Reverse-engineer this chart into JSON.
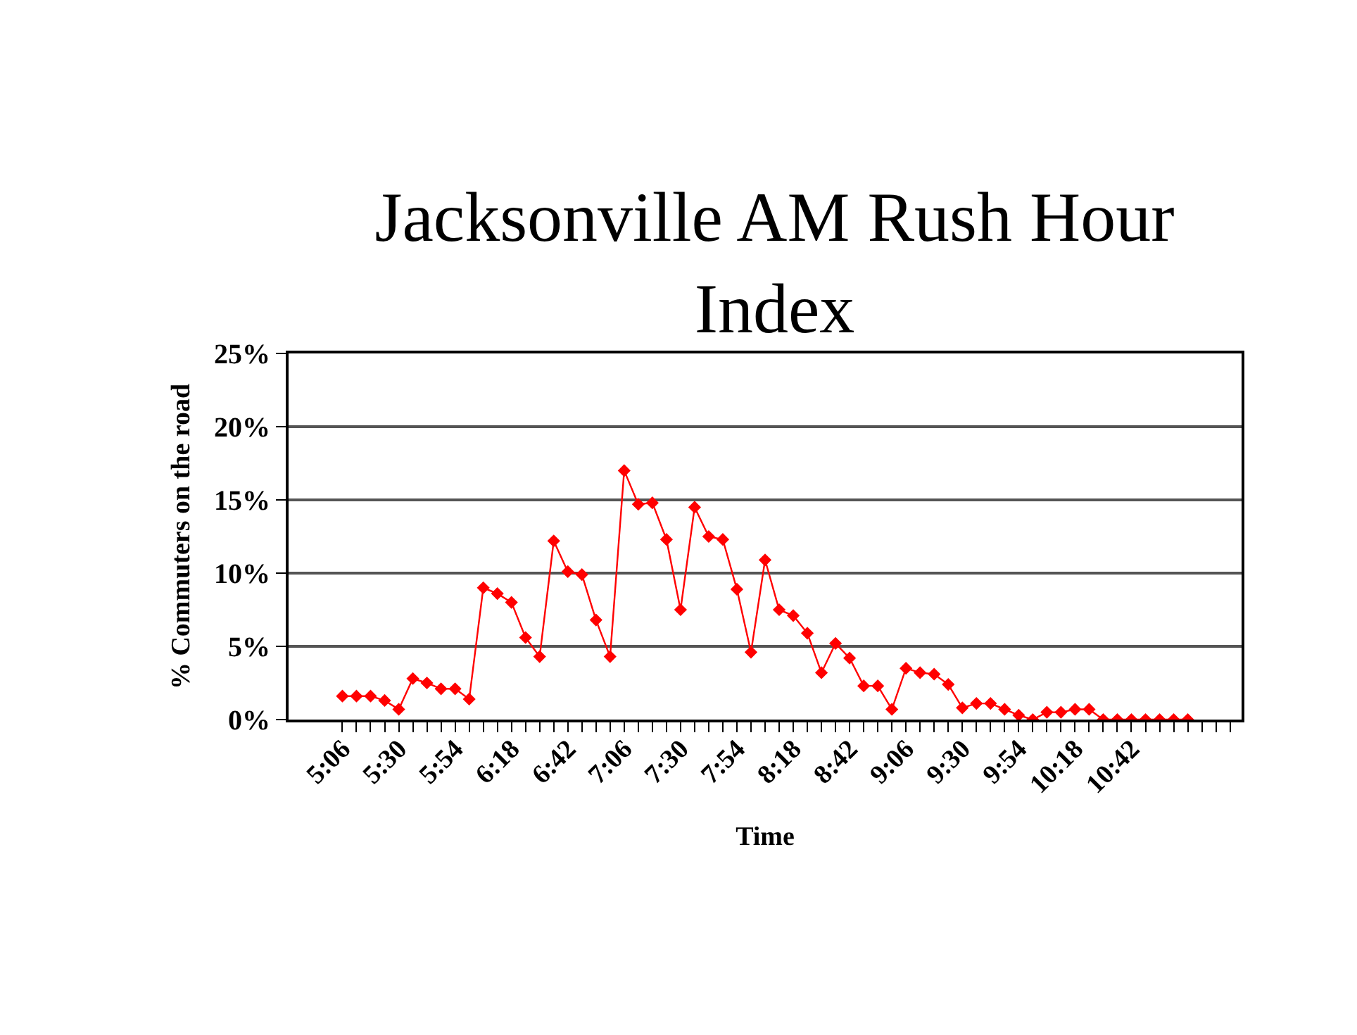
{
  "chart_data": {
    "type": "line",
    "title": "Jacksonville AM Rush Hour Index",
    "xlabel": "Time",
    "ylabel": "% Commuters on the road",
    "categories": [
      "5:06",
      null,
      null,
      null,
      "5:30",
      null,
      null,
      null,
      "5:54",
      null,
      null,
      null,
      "6:18",
      null,
      null,
      null,
      "6:42",
      null,
      null,
      null,
      "7:06",
      null,
      null,
      null,
      "7:30",
      null,
      null,
      null,
      "7:54",
      null,
      null,
      null,
      "8:18",
      null,
      null,
      null,
      "8:42",
      null,
      null,
      null,
      "9:06",
      null,
      null,
      null,
      "9:30",
      null,
      null,
      null,
      "9:54",
      null,
      null,
      null,
      "10:18",
      null,
      null,
      null,
      "10:42",
      null,
      null,
      null,
      null
    ],
    "series": [
      {
        "color": "#ff0000",
        "values": [
          1.6,
          1.6,
          1.6,
          1.3,
          0.7,
          2.8,
          2.5,
          2.1,
          2.1,
          1.4,
          9.0,
          8.6,
          8.0,
          5.6,
          4.3,
          12.2,
          10.1,
          9.9,
          6.8,
          4.3,
          17.0,
          14.7,
          14.8,
          12.3,
          7.5,
          14.5,
          12.5,
          12.3,
          8.9,
          4.6,
          10.9,
          7.5,
          7.1,
          5.9,
          3.2,
          5.2,
          4.2,
          2.3,
          2.3,
          0.7,
          3.5,
          3.2,
          3.1,
          2.4,
          0.8,
          1.1,
          1.1,
          0.7,
          0.3,
          0,
          0.5,
          0.5,
          0.7,
          0.7,
          0,
          0,
          0,
          0,
          0,
          0,
          0
        ]
      }
    ],
    "ylim": [
      0,
      25
    ],
    "yticks": [
      {
        "value": 0,
        "label": "0%"
      },
      {
        "value": 5,
        "label": "5%"
      },
      {
        "value": 10,
        "label": "10%"
      },
      {
        "value": 15,
        "label": "15%"
      },
      {
        "value": 20,
        "label": "20%"
      },
      {
        "value": 25,
        "label": "25%"
      }
    ],
    "grid": "y",
    "marker": "diamond",
    "line_style": "solid"
  }
}
